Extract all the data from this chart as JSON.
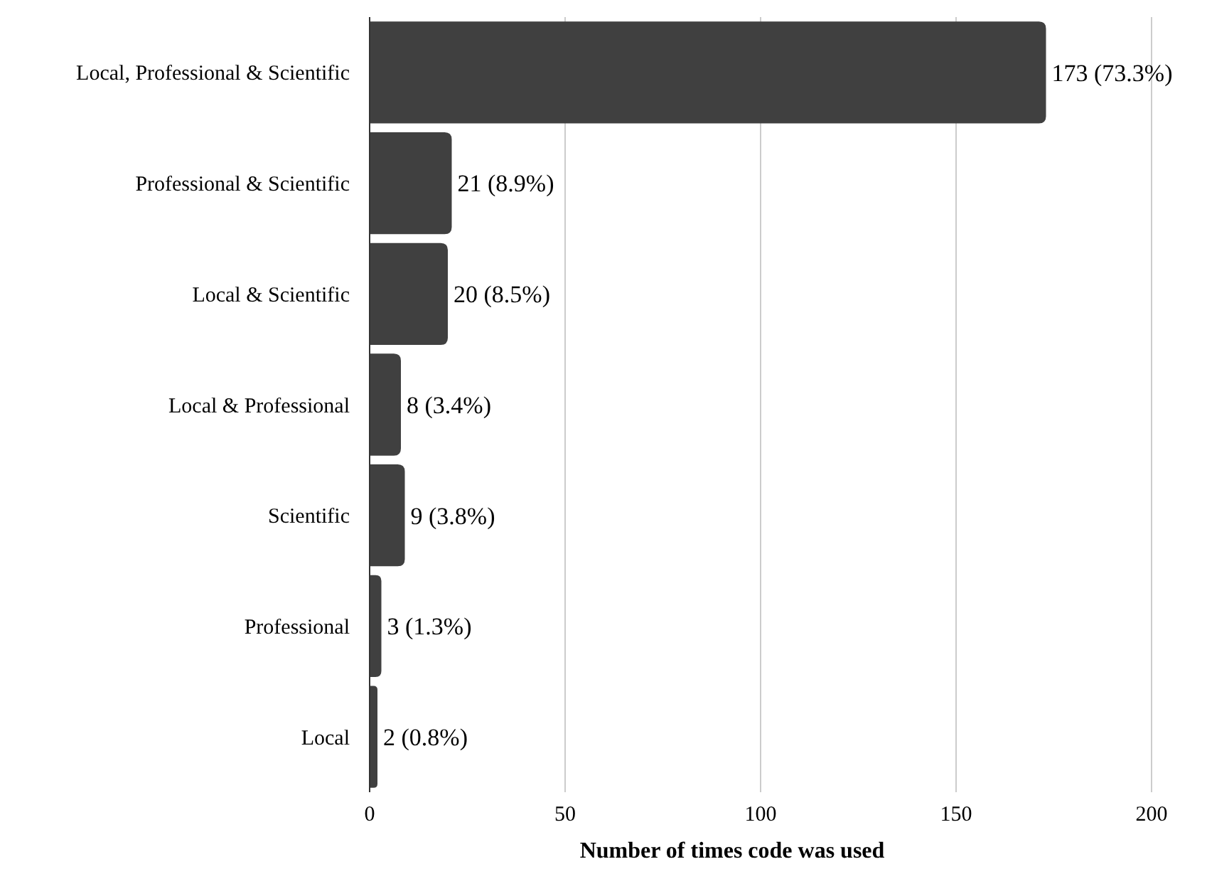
{
  "chart_data": {
    "type": "bar",
    "orientation": "horizontal",
    "categories": [
      "Local, Professional & Scientific",
      "Professional & Scientific",
      "Local & Scientific",
      "Local & Professional",
      "Scientific",
      "Professional",
      "Local"
    ],
    "values": [
      173,
      21,
      20,
      8,
      9,
      3,
      2
    ],
    "value_labels": [
      "173 (73.3%)",
      "21 (8.9%)",
      "20 (8.5%)",
      "8 (3.4%)",
      "9 (3.8%)",
      "3 (1.3%)",
      "2 (0.8%)"
    ],
    "color": "#404040",
    "xlabel": "Number of times code was used",
    "xlim": [
      0,
      200
    ],
    "xticks": [
      0,
      50,
      100,
      150,
      200
    ],
    "grid": "x"
  }
}
